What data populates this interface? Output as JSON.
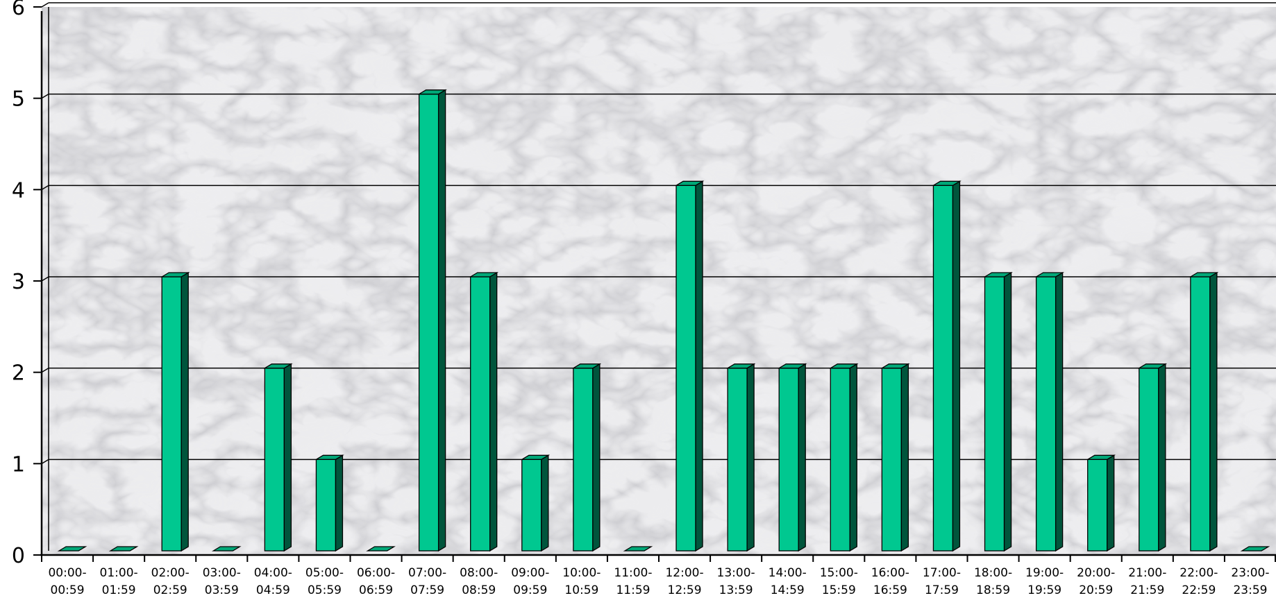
{
  "chart_data": {
    "type": "bar",
    "title": "",
    "xlabel": "",
    "ylabel": "",
    "ylim": [
      0,
      6
    ],
    "yticks": [
      0,
      1,
      2,
      3,
      4,
      5,
      6
    ],
    "grid": true,
    "legend": "none",
    "bar_color": "#00c890",
    "bar_side_color": "#00553c",
    "bar_top_color": "#00a878",
    "background": "marble",
    "categories": [
      [
        "00:00-",
        "00:59"
      ],
      [
        "01:00-",
        "01:59"
      ],
      [
        "02:00-",
        "02:59"
      ],
      [
        "03:00-",
        "03:59"
      ],
      [
        "04:00-",
        "04:59"
      ],
      [
        "05:00-",
        "05:59"
      ],
      [
        "06:00-",
        "06:59"
      ],
      [
        "07:00-",
        "07:59"
      ],
      [
        "08:00-",
        "08:59"
      ],
      [
        "09:00-",
        "09:59"
      ],
      [
        "10:00-",
        "10:59"
      ],
      [
        "11:00-",
        "11:59"
      ],
      [
        "12:00-",
        "12:59"
      ],
      [
        "13:00-",
        "13:59"
      ],
      [
        "14:00-",
        "14:59"
      ],
      [
        "15:00-",
        "15:59"
      ],
      [
        "16:00-",
        "16:59"
      ],
      [
        "17:00-",
        "17:59"
      ],
      [
        "18:00-",
        "18:59"
      ],
      [
        "19:00-",
        "19:59"
      ],
      [
        "20:00-",
        "20:59"
      ],
      [
        "21:00-",
        "21:59"
      ],
      [
        "22:00-",
        "22:59"
      ],
      [
        "23:00-",
        "23:59"
      ]
    ],
    "values": [
      0,
      0,
      3,
      0,
      2,
      1,
      0,
      5,
      3,
      1,
      2,
      0,
      4,
      2,
      2,
      2,
      2,
      4,
      3,
      3,
      1,
      2,
      3,
      0
    ]
  }
}
